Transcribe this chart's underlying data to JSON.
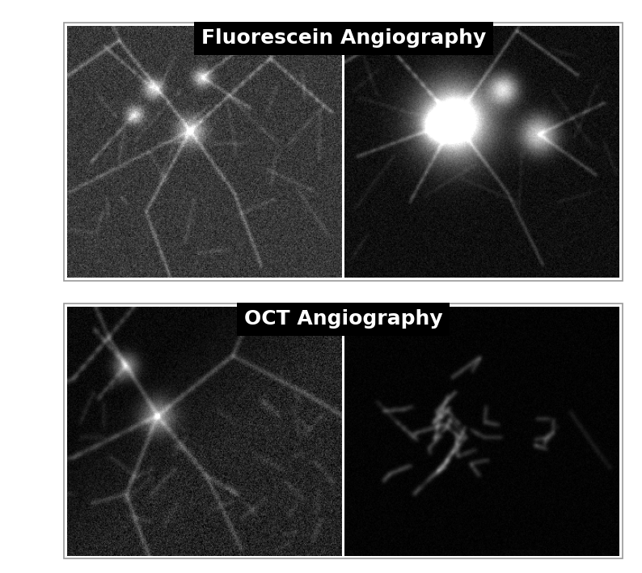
{
  "title_top": "Fluorescein Angiography",
  "title_bottom": "OCT Angiography",
  "title_fontsize": 18,
  "title_fontweight": "bold",
  "title_color": "white",
  "title_bg_color": "black",
  "bg_color": "white",
  "figsize": [
    7.94,
    7.08
  ],
  "dpi": 100
}
